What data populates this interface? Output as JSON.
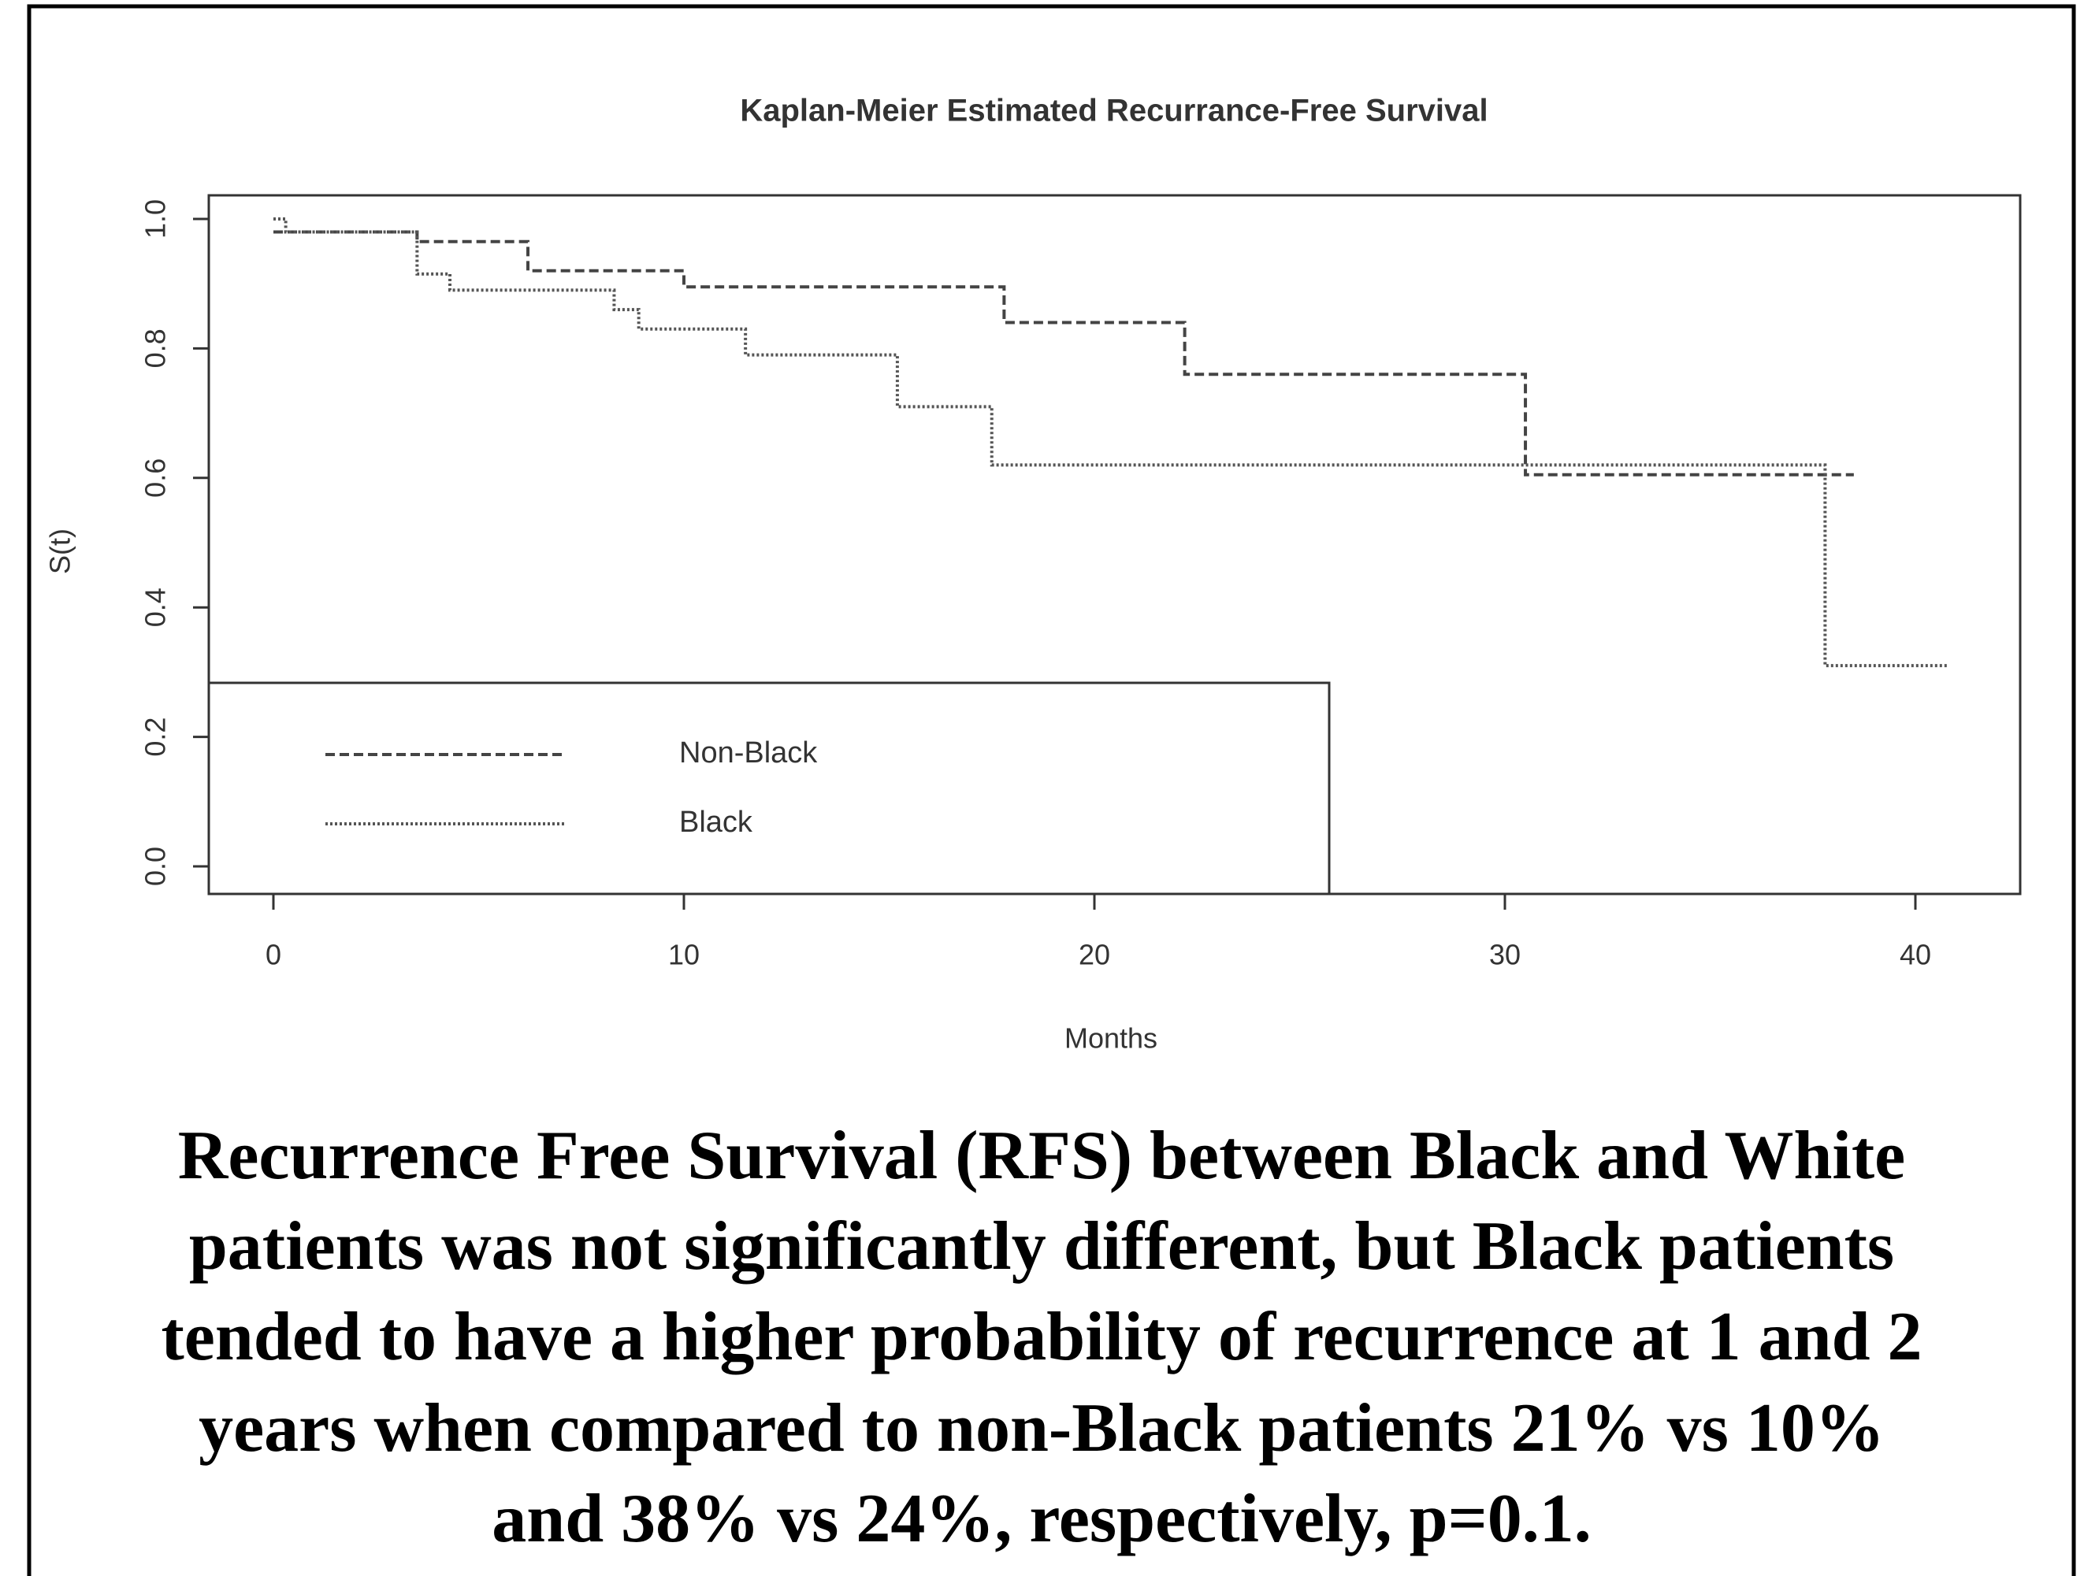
{
  "chart_data": {
    "type": "step",
    "title": "Kaplan-Meier Estimated Recurrance-Free Survival",
    "x_label": "Months",
    "y_label": "S(t)",
    "xlim": [
      0,
      40
    ],
    "ylim": [
      0,
      1
    ],
    "xticks": [
      0,
      10,
      20,
      30,
      40
    ],
    "yticks": [
      {
        "value": 0,
        "label": "0.0"
      },
      0.2,
      0.4,
      0.6,
      0.8,
      {
        "value": 1,
        "label": "1.0"
      }
    ],
    "legend": "bottom-left",
    "series": [
      {
        "name": "Non-Black",
        "color": "#444444",
        "dash": "dashed",
        "x": [
          0,
          3.5,
          6.2,
          10,
          17.8,
          22.2,
          30.5,
          38.5
        ],
        "values": [
          0.98,
          0.965,
          0.92,
          0.895,
          0.84,
          0.76,
          0.605,
          0.605
        ]
      },
      {
        "name": "Black",
        "color": "#555555",
        "dash": "dotted",
        "x": [
          0,
          0.3,
          3.5,
          4.3,
          8.3,
          8.9,
          11.5,
          15.2,
          17.5,
          37.8,
          40.8
        ],
        "values": [
          1.0,
          0.98,
          0.915,
          0.89,
          0.86,
          0.83,
          0.79,
          0.71,
          0.62,
          0.31,
          0.31
        ]
      }
    ]
  },
  "caption": [
    "Recurrence Free Survival (RFS) between Black and White",
    "patients was not significantly different, but Black patients",
    "tended to have a higher probability of recurrence at 1 and 2",
    "years when compared to non-Black patients 21% vs 10%",
    "and 38% vs 24%, respectively, p=0.1."
  ]
}
